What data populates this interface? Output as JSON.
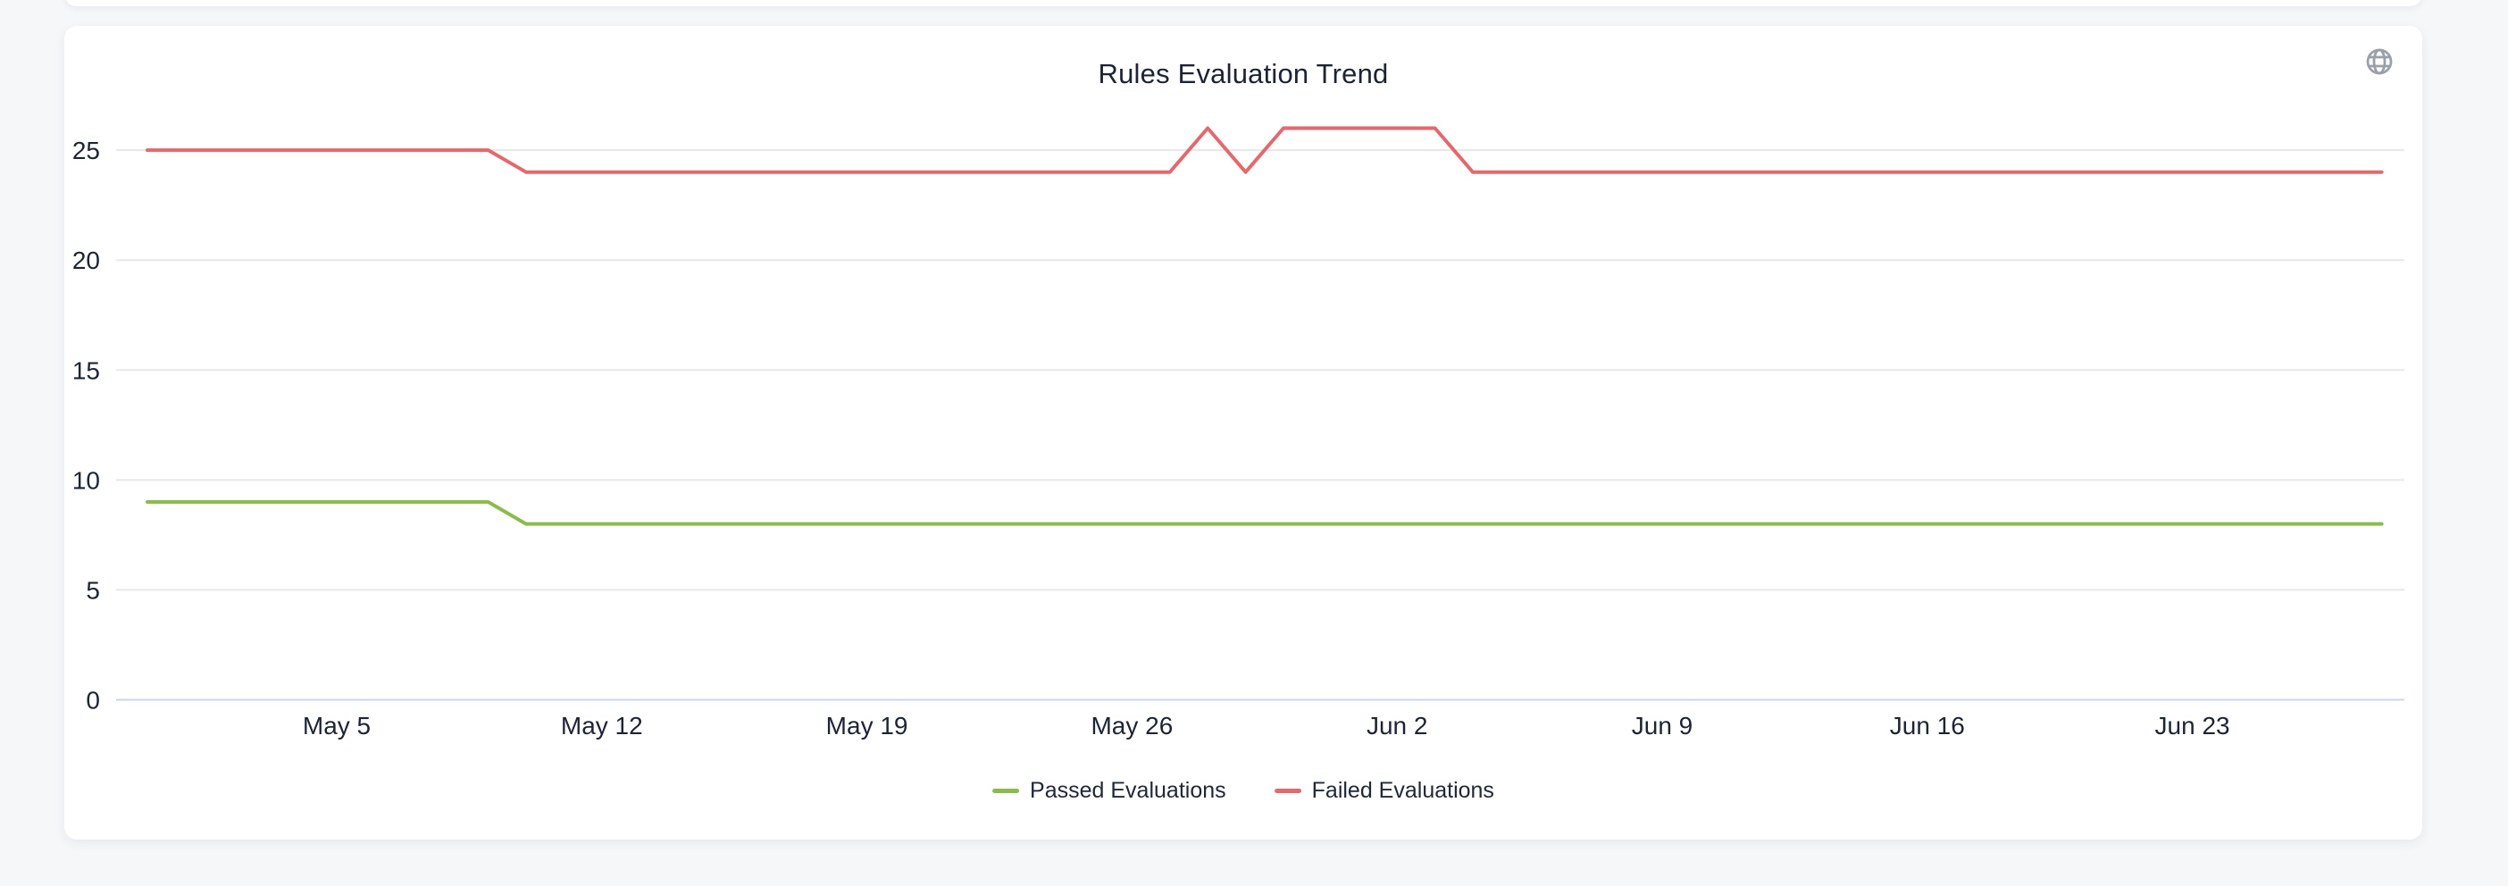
{
  "card": {
    "title": "Rules Evaluation Trend"
  },
  "icons": {
    "globe": "globe-icon"
  },
  "theme": {
    "page_background": "#f6f7f9",
    "card_background": "#ffffff",
    "text_color": "#1c2434",
    "tick_label_color": "#1d2535",
    "grid_color": "#e7e7e9",
    "axis_baseline_color": "#ccd6eb",
    "globe_icon_color": "#99a0ab",
    "passed_color": "#8cbb4d",
    "failed_color": "#e2696e"
  },
  "chart_data": {
    "type": "line",
    "title": "Rules Evaluation Trend",
    "xlabel": "",
    "ylabel": "",
    "ylim": [
      0,
      27
    ],
    "grid": true,
    "legend_position": "bottom",
    "y_ticks": [
      0,
      5,
      10,
      15,
      20,
      25
    ],
    "x_tick_labels": [
      "May 5",
      "May 12",
      "May 19",
      "May 26",
      "Jun 2",
      "Jun 9",
      "Jun 16",
      "Jun 23"
    ],
    "x_tick_positions": [
      5,
      12,
      19,
      26,
      33,
      40,
      47,
      54
    ],
    "x": [
      "Apr 30",
      "May 1",
      "May 2",
      "May 3",
      "May 4",
      "May 5",
      "May 6",
      "May 7",
      "May 8",
      "May 9",
      "May 10",
      "May 11",
      "May 12",
      "May 13",
      "May 14",
      "May 15",
      "May 16",
      "May 17",
      "May 18",
      "May 19",
      "May 20",
      "May 21",
      "May 22",
      "May 23",
      "May 24",
      "May 25",
      "May 26",
      "May 27",
      "May 28",
      "May 29",
      "May 30",
      "May 31",
      "Jun 1",
      "Jun 2",
      "Jun 3",
      "Jun 4",
      "Jun 5",
      "Jun 6",
      "Jun 7",
      "Jun 8",
      "Jun 9",
      "Jun 10",
      "Jun 11",
      "Jun 12",
      "Jun 13",
      "Jun 14",
      "Jun 15",
      "Jun 16",
      "Jun 17",
      "Jun 18",
      "Jun 19",
      "Jun 20",
      "Jun 21",
      "Jun 22",
      "Jun 23",
      "Jun 24",
      "Jun 25",
      "Jun 26",
      "Jun 27",
      "Jun 28"
    ],
    "series": [
      {
        "name": "Passed Evaluations",
        "color": "#8cbb4d",
        "values": [
          9,
          9,
          9,
          9,
          9,
          9,
          9,
          9,
          9,
          9,
          8,
          8,
          8,
          8,
          8,
          8,
          8,
          8,
          8,
          8,
          8,
          8,
          8,
          8,
          8,
          8,
          8,
          8,
          8,
          8,
          8,
          8,
          8,
          8,
          8,
          8,
          8,
          8,
          8,
          8,
          8,
          8,
          8,
          8,
          8,
          8,
          8,
          8,
          8,
          8,
          8,
          8,
          8,
          8,
          8,
          8,
          8,
          8,
          8,
          8
        ]
      },
      {
        "name": "Failed Evaluations",
        "color": "#e2696e",
        "values": [
          25,
          25,
          25,
          25,
          25,
          25,
          25,
          25,
          25,
          25,
          24,
          24,
          24,
          24,
          24,
          24,
          24,
          24,
          24,
          24,
          24,
          24,
          24,
          24,
          24,
          24,
          24,
          24,
          26,
          24,
          26,
          26,
          26,
          26,
          26,
          24,
          24,
          24,
          24,
          24,
          24,
          24,
          24,
          24,
          24,
          24,
          24,
          24,
          24,
          24,
          24,
          24,
          24,
          24,
          24,
          24,
          24,
          24,
          24,
          24
        ]
      }
    ]
  }
}
